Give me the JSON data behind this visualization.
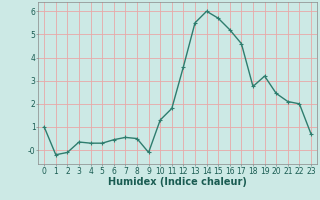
{
  "x": [
    0,
    1,
    2,
    3,
    4,
    5,
    6,
    7,
    8,
    9,
    10,
    11,
    12,
    13,
    14,
    15,
    16,
    17,
    18,
    19,
    20,
    21,
    22,
    23
  ],
  "y": [
    1.0,
    -0.2,
    -0.1,
    0.35,
    0.3,
    0.3,
    0.45,
    0.55,
    0.5,
    -0.1,
    1.3,
    1.8,
    3.6,
    5.5,
    6.0,
    5.7,
    5.2,
    4.6,
    2.75,
    3.2,
    2.45,
    2.1,
    2.0,
    0.7
  ],
  "line_color": "#2e7d6e",
  "marker": "+",
  "marker_size": 3,
  "linewidth": 1.0,
  "bg_color": "#cce9e5",
  "grid_color": "#e8a8a8",
  "xlabel": "Humidex (Indice chaleur)",
  "xlabel_fontsize": 7,
  "ylim": [
    -0.6,
    6.4
  ],
  "xlim": [
    -0.5,
    23.5
  ],
  "yticks": [
    0,
    1,
    2,
    3,
    4,
    5,
    6
  ],
  "ytick_labels": [
    "-0",
    "1",
    "2",
    "3",
    "4",
    "5",
    "6"
  ],
  "xticks": [
    0,
    1,
    2,
    3,
    4,
    5,
    6,
    7,
    8,
    9,
    10,
    11,
    12,
    13,
    14,
    15,
    16,
    17,
    18,
    19,
    20,
    21,
    22,
    23
  ],
  "tick_fontsize": 5.5
}
